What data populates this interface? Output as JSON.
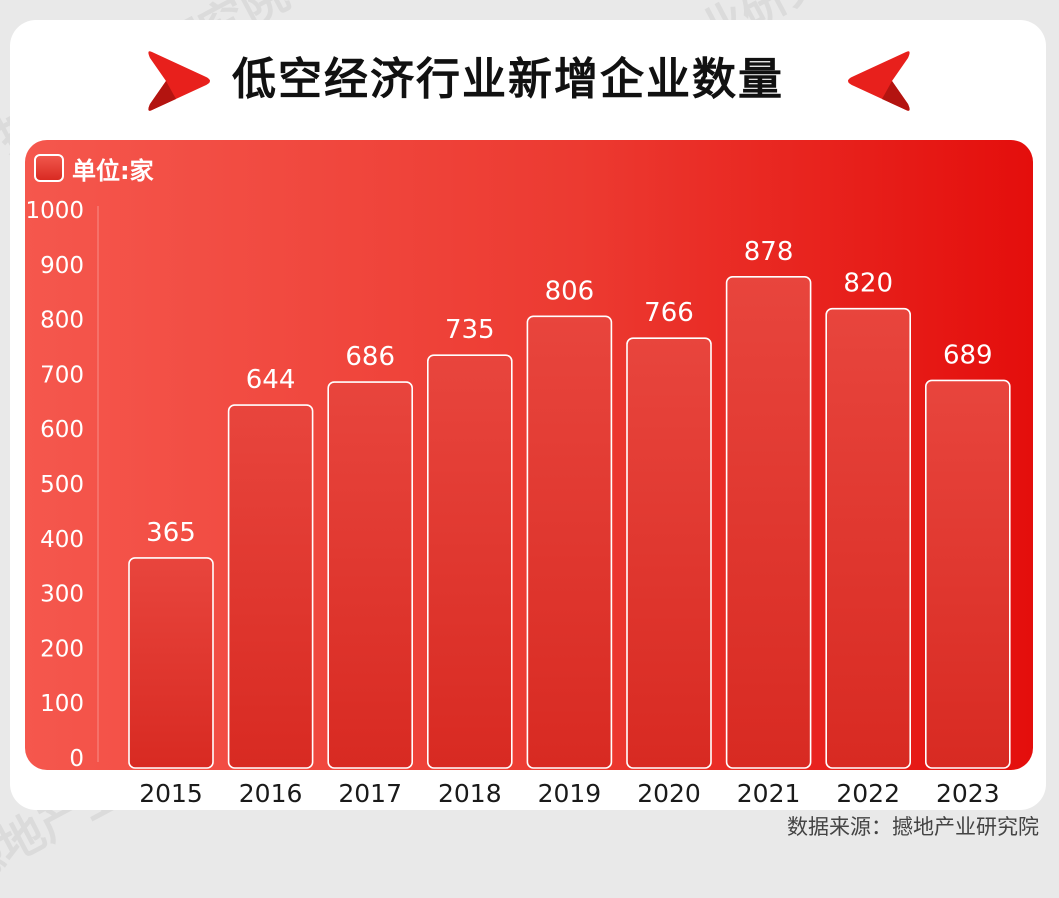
{
  "title": "低空经济行业新增企业数量",
  "source": "数据来源：撼地产业研究院",
  "watermark": "撼地产业研究院",
  "legend_label": "单位:家",
  "colors": {
    "accent": "#e8201c",
    "bar_top": "#e8453d",
    "bar_bottom": "#d82a22"
  },
  "chart_data": {
    "type": "bar",
    "categories": [
      "2015",
      "2016",
      "2017",
      "2018",
      "2019",
      "2020",
      "2021",
      "2022",
      "2023"
    ],
    "values": [
      365,
      644,
      686,
      735,
      806,
      766,
      878,
      820,
      689
    ],
    "ylim": [
      0,
      1000
    ],
    "yticks": [
      0,
      100,
      200,
      300,
      400,
      500,
      600,
      700,
      800,
      900,
      1000
    ],
    "grid": false,
    "legend": "top-left"
  }
}
